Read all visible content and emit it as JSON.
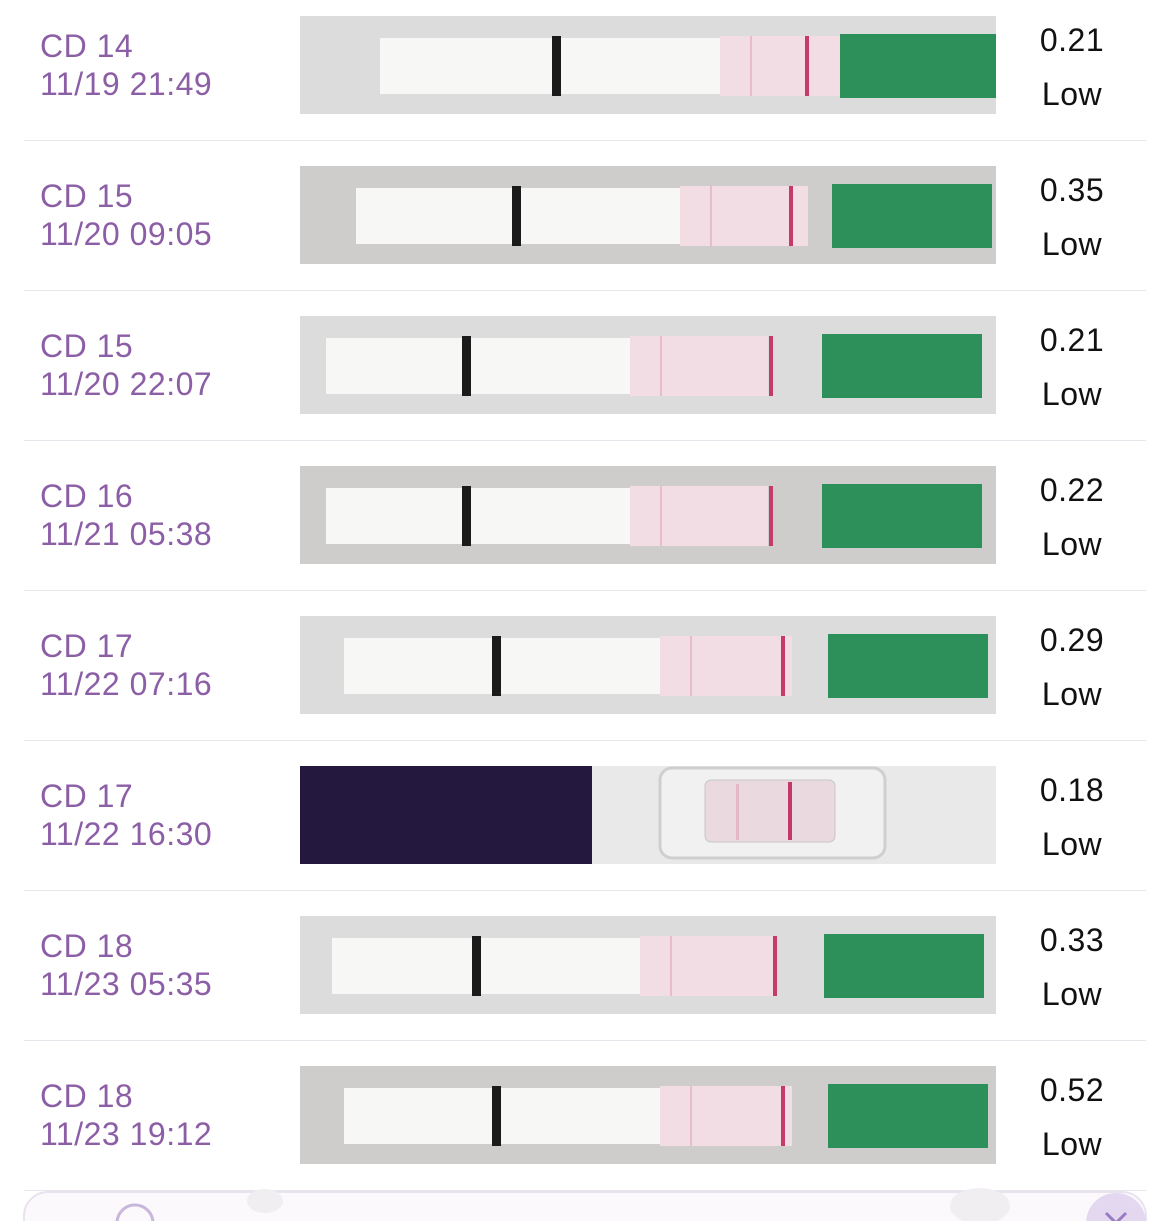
{
  "rows": [
    {
      "cycle_day": "CD 14",
      "time": "11/19 21:49",
      "value": 0.21,
      "status": "Low"
    },
    {
      "cycle_day": "CD 15",
      "time": "11/20 09:05",
      "value": 0.35,
      "status": "Low"
    },
    {
      "cycle_day": "CD 15",
      "time": "11/20 22:07",
      "value": 0.21,
      "status": "Low"
    },
    {
      "cycle_day": "CD 16",
      "time": "11/21 05:38",
      "value": 0.22,
      "status": "Low"
    },
    {
      "cycle_day": "CD 17",
      "time": "11/22 07:16",
      "value": 0.29,
      "status": "Low"
    },
    {
      "cycle_day": "CD 17",
      "time": "11/22 16:30",
      "value": 0.18,
      "status": "Low"
    },
    {
      "cycle_day": "CD 18",
      "time": "11/23 05:35",
      "value": 0.33,
      "status": "Low"
    },
    {
      "cycle_day": "CD 18",
      "time": "11/23 19:12",
      "value": 0.52,
      "status": "Low"
    }
  ]
}
